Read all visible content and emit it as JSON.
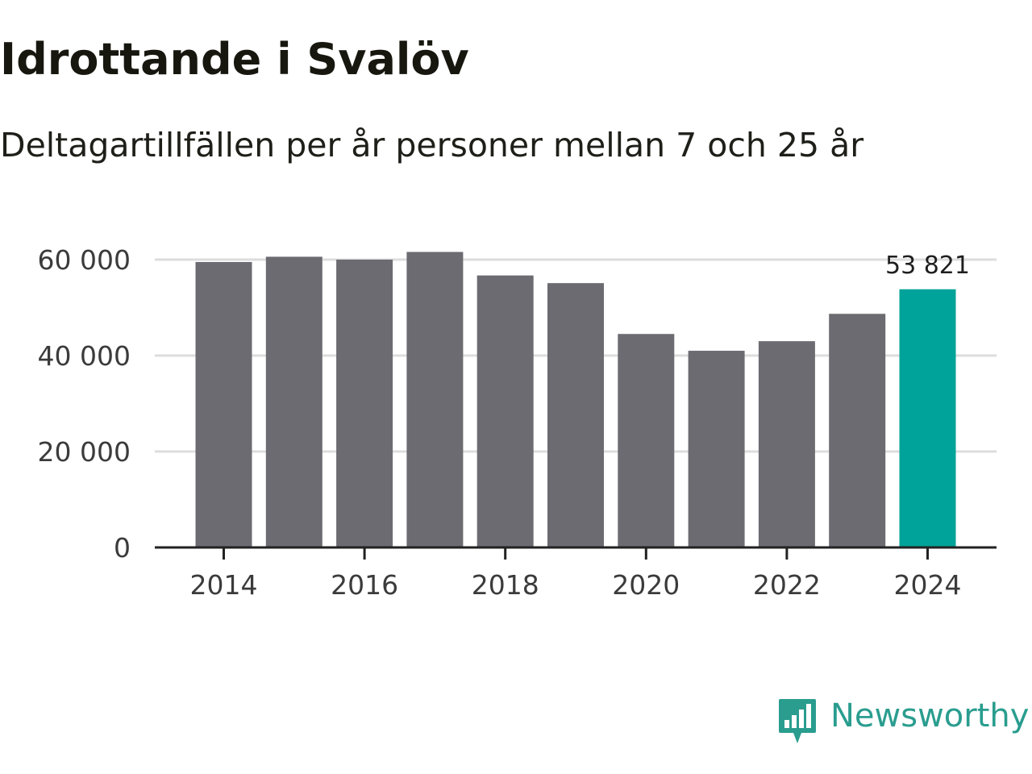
{
  "header": {
    "title": "Idrottande i Svalöv",
    "subtitle": "Deltagartillfällen per år personer mellan 7 och 25 år"
  },
  "chart_data": {
    "type": "bar",
    "title": "Idrottande i Svalöv",
    "subtitle": "Deltagartillfällen per år personer mellan 7 och 25 år",
    "xlabel": "",
    "ylabel": "",
    "categories": [
      "2014",
      "2015",
      "2016",
      "2017",
      "2018",
      "2019",
      "2020",
      "2021",
      "2022",
      "2023",
      "2024"
    ],
    "values": [
      59500,
      60600,
      60000,
      61600,
      56700,
      55100,
      44500,
      41000,
      43000,
      48700,
      53821
    ],
    "ylim": [
      0,
      60000
    ],
    "y_ticks": [
      0,
      20000,
      40000,
      60000
    ],
    "y_tick_labels": [
      "0",
      "20 000",
      "40 000",
      "60 000"
    ],
    "x_tick_labels": [
      "2014",
      "2016",
      "2018",
      "2020",
      "2022",
      "2024"
    ],
    "highlight_index": 10,
    "highlight_label": "53 821",
    "colors": {
      "bar": "#6c6b71",
      "highlight": "#00a399",
      "grid": "#dddddd",
      "axis": "#222222",
      "text": "#3b3b3b"
    },
    "grid": true
  },
  "brand": {
    "name": "Newsworthy",
    "icon": "newsworthy-logo-icon",
    "color": "#2a9d8f"
  }
}
